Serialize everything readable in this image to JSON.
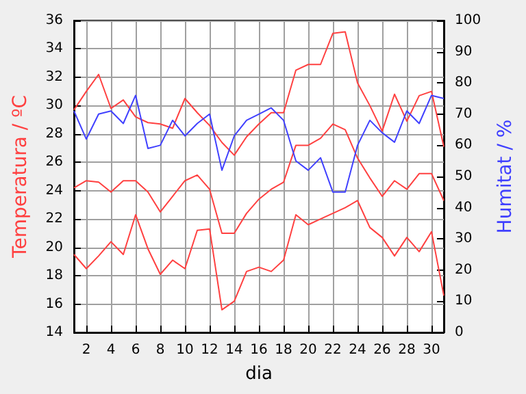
{
  "chart_data": {
    "type": "line",
    "xlabel": "dia",
    "ylabel": "Temperatura / ºC",
    "y2label": "Humitat / %",
    "x": [
      1,
      2,
      3,
      4,
      5,
      6,
      7,
      8,
      9,
      10,
      11,
      12,
      13,
      14,
      15,
      16,
      17,
      18,
      19,
      20,
      21,
      22,
      23,
      24,
      25,
      26,
      27,
      28,
      29,
      30,
      31
    ],
    "series": [
      {
        "color": "#ff4040",
        "values": [
          29.7,
          31.0,
          32.2,
          29.8,
          30.4,
          29.2,
          28.8,
          28.7,
          28.4,
          30.5,
          29.5,
          28.6,
          27.4,
          26.5,
          27.8,
          28.7,
          29.5,
          29.5,
          32.5,
          32.9,
          32.9,
          35.1,
          35.2,
          31.6,
          30.0,
          28.2,
          30.8,
          28.9,
          30.7,
          31.0,
          27.1
        ]
      },
      {
        "color": "#ff4040",
        "values": [
          24.2,
          24.7,
          24.6,
          23.9,
          24.7,
          24.7,
          23.9,
          22.5,
          23.6,
          24.7,
          25.1,
          24.1,
          21.0,
          21.0,
          22.4,
          23.4,
          24.1,
          24.6,
          27.2,
          27.2,
          27.7,
          28.7,
          28.3,
          26.3,
          24.9,
          23.6,
          24.7,
          24.1,
          25.2,
          25.2,
          23.3
        ]
      },
      {
        "color": "#ff4040",
        "values": [
          19.5,
          18.5,
          19.4,
          20.4,
          19.5,
          22.3,
          19.9,
          18.1,
          19.1,
          18.5,
          21.2,
          21.3,
          15.6,
          16.2,
          18.3,
          18.6,
          18.3,
          19.1,
          22.3,
          21.6,
          22.0,
          22.4,
          22.8,
          23.3,
          21.4,
          20.7,
          19.4,
          20.7,
          19.7,
          21.1,
          16.6
        ]
      },
      {
        "color": "#4040ff",
        "axis": "y2",
        "values": [
          71,
          62,
          70,
          71,
          67,
          76,
          59,
          60,
          68,
          63,
          67,
          70,
          52,
          63,
          68,
          70,
          72,
          68,
          55,
          52,
          56,
          45,
          45,
          60,
          68,
          64,
          61,
          71,
          67,
          76,
          75
        ]
      }
    ],
    "xlim": [
      1,
      31
    ],
    "xticks": [
      2,
      4,
      6,
      8,
      10,
      12,
      14,
      16,
      18,
      20,
      22,
      24,
      26,
      28,
      30
    ],
    "ylim": [
      14,
      36
    ],
    "yticks": [
      14,
      16,
      18,
      20,
      22,
      24,
      26,
      28,
      30,
      32,
      34,
      36
    ],
    "y2lim": [
      0,
      100
    ],
    "y2ticks": [
      0,
      10,
      20,
      30,
      40,
      50,
      60,
      70,
      80,
      90,
      100
    ],
    "grid": true,
    "marker": "none",
    "line_style": "solid"
  }
}
